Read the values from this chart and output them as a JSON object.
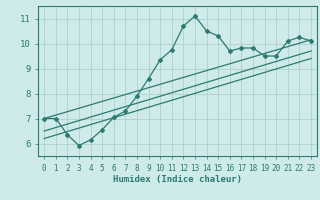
{
  "xlabel": "Humidex (Indice chaleur)",
  "bg_color": "#ceeaea",
  "line_color": "#2d7b6e",
  "grid_color": "#b0d0d0",
  "xlim": [
    -0.5,
    23.5
  ],
  "ylim": [
    5.5,
    11.5
  ],
  "xticks": [
    0,
    1,
    2,
    3,
    4,
    5,
    6,
    7,
    8,
    9,
    10,
    11,
    12,
    13,
    14,
    15,
    16,
    17,
    18,
    19,
    20,
    21,
    22,
    23
  ],
  "yticks": [
    6,
    7,
    8,
    9,
    10,
    11
  ],
  "curve_x": [
    0,
    1,
    2,
    3,
    4,
    5,
    6,
    7,
    8,
    9,
    10,
    11,
    12,
    13,
    14,
    15,
    16,
    17,
    18,
    19,
    20,
    21,
    22,
    23
  ],
  "curve_y": [
    7.0,
    7.0,
    6.35,
    5.92,
    6.15,
    6.55,
    7.05,
    7.3,
    7.9,
    8.6,
    9.35,
    9.75,
    10.7,
    11.1,
    10.5,
    10.3,
    9.7,
    9.82,
    9.82,
    9.5,
    9.5,
    10.1,
    10.25,
    10.1
  ],
  "trend1_x": [
    0,
    23
  ],
  "trend1_y": [
    7.0,
    10.15
  ],
  "trend2_x": [
    0,
    23
  ],
  "trend2_y": [
    6.5,
    9.7
  ],
  "trend3_x": [
    0,
    23
  ],
  "trend3_y": [
    6.2,
    9.4
  ]
}
